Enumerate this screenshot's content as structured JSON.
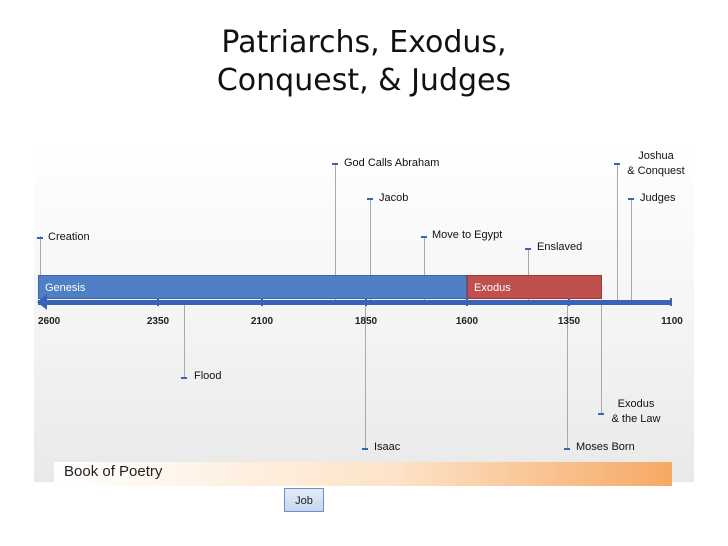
{
  "title": {
    "line1": "Patriarchs, Exodus,",
    "line2": "Conquest, & Judges"
  },
  "axis": {
    "ticks": [
      "2600",
      "2350",
      "2100",
      "1850",
      "1600",
      "1350",
      "1100"
    ]
  },
  "bars": {
    "genesis": "Genesis",
    "exodus": "Exodus"
  },
  "events": {
    "creation": "Creation",
    "god_calls_abraham": "God Calls Abraham",
    "jacob": "Jacob",
    "move_to_egypt": "Move to Egypt",
    "enslaved": "Enslaved",
    "joshua_line1": "Joshua",
    "joshua_line2": "& Conquest",
    "judges": "Judges",
    "flood": "Flood",
    "isaac": "Isaac",
    "moses_born": "Moses Born",
    "exodus_law_line1": "Exodus",
    "exodus_law_line2": "& the Law"
  },
  "poetry": {
    "label": "Book of Poetry",
    "job": "Job"
  },
  "colors": {
    "axis": "#3a63b8",
    "genesis_bar": "#4f7fc4",
    "exodus_bar": "#c0504d"
  }
}
